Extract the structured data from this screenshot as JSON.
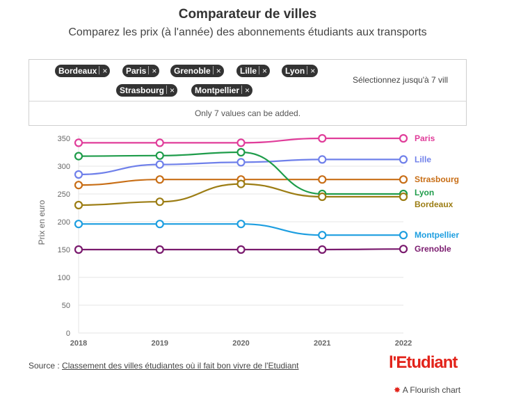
{
  "title": "Comparateur de villes",
  "subtitle": "Comparez les prix (à l'année) des abonnements étudiants aux transports",
  "picker": {
    "tags": [
      "Bordeaux",
      "Paris",
      "Grenoble",
      "Lille",
      "Lyon",
      "Strasbourg",
      "Montpellier"
    ],
    "remove_symbol": "×",
    "hint": "Sélectionnez jusqu'à 7 vill",
    "notice": "Only 7 values can be added."
  },
  "source": {
    "prefix": "Source : ",
    "link_text": "Classement des villes étudiantes où il fait bon vivre de l'Etudiant"
  },
  "logo_text": "l'Etudiant",
  "flourish_text": "A Flourish chart",
  "colors": {
    "Paris": "#e03d9a",
    "Lille": "#6f80ea",
    "Strasbourg": "#c86e16",
    "Lyon": "#1e9c4a",
    "Bordeaux": "#9c7d14",
    "Montpellier": "#1d9ee0",
    "Grenoble": "#7a1a6e",
    "grid": "#e6e6e6",
    "axis_text": "#666666"
  },
  "chart_data": {
    "type": "line",
    "title": "Comparateur de villes",
    "xlabel": "",
    "ylabel": "Prix en euro",
    "x": [
      "2018",
      "2019",
      "2020",
      "2021",
      "2022"
    ],
    "ylim": [
      0,
      350
    ],
    "yticks": [
      0,
      50,
      100,
      150,
      200,
      250,
      300,
      350
    ],
    "grid": true,
    "series": [
      {
        "name": "Paris",
        "values": [
          342,
          342,
          342,
          350,
          350
        ]
      },
      {
        "name": "Lille",
        "values": [
          285,
          303,
          307,
          312,
          312
        ]
      },
      {
        "name": "Strasbourg",
        "values": [
          266,
          276,
          276,
          276,
          276
        ]
      },
      {
        "name": "Lyon",
        "values": [
          318,
          319,
          325,
          250,
          250
        ]
      },
      {
        "name": "Bordeaux",
        "values": [
          230,
          236,
          268,
          245,
          245
        ]
      },
      {
        "name": "Montpellier",
        "values": [
          196,
          196,
          196,
          176,
          176
        ]
      },
      {
        "name": "Grenoble",
        "values": [
          150,
          150,
          150,
          150,
          151
        ]
      }
    ]
  }
}
